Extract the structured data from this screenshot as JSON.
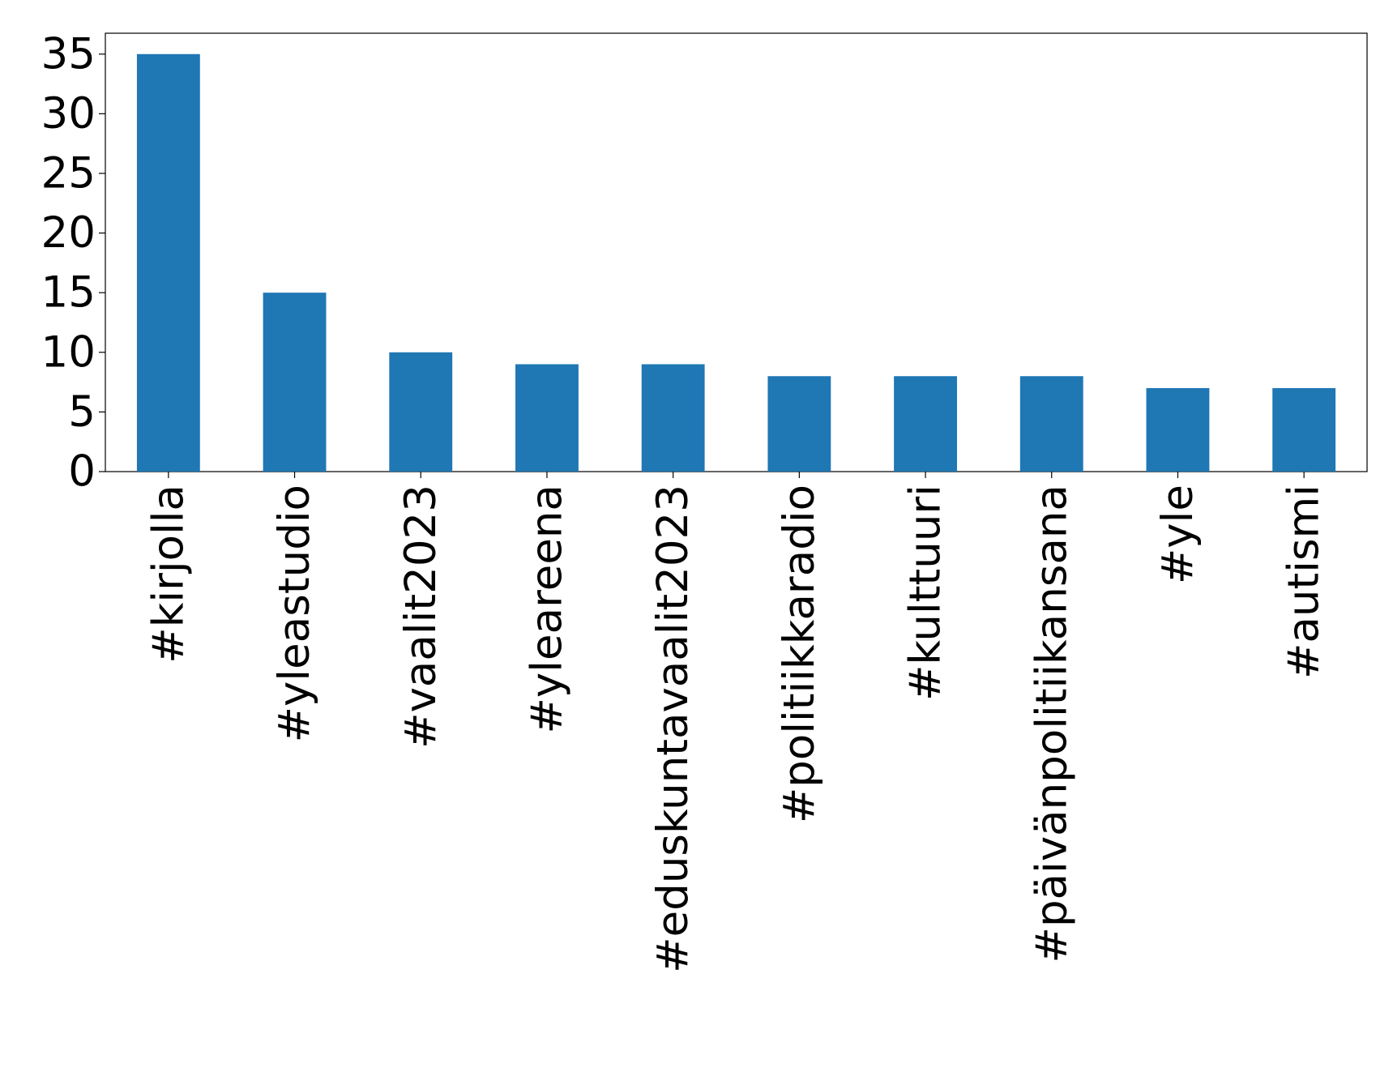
{
  "chart_data": {
    "type": "bar",
    "categories": [
      "#kirjolla",
      "#yleastudio",
      "#vaalit2023",
      "#yleareena",
      "#eduskuntavaalit2023",
      "#politiikkaradio",
      "#kulttuuri",
      "#päivänpolitiikansana",
      "#yle",
      "#autismi"
    ],
    "values": [
      35,
      15,
      10,
      9,
      9,
      8,
      8,
      8,
      7,
      7
    ],
    "color": "#1f77b4",
    "ylim": [
      0,
      36.75
    ],
    "yticks": [
      0,
      5,
      10,
      15,
      20,
      25,
      30,
      35
    ],
    "grid": false
  }
}
